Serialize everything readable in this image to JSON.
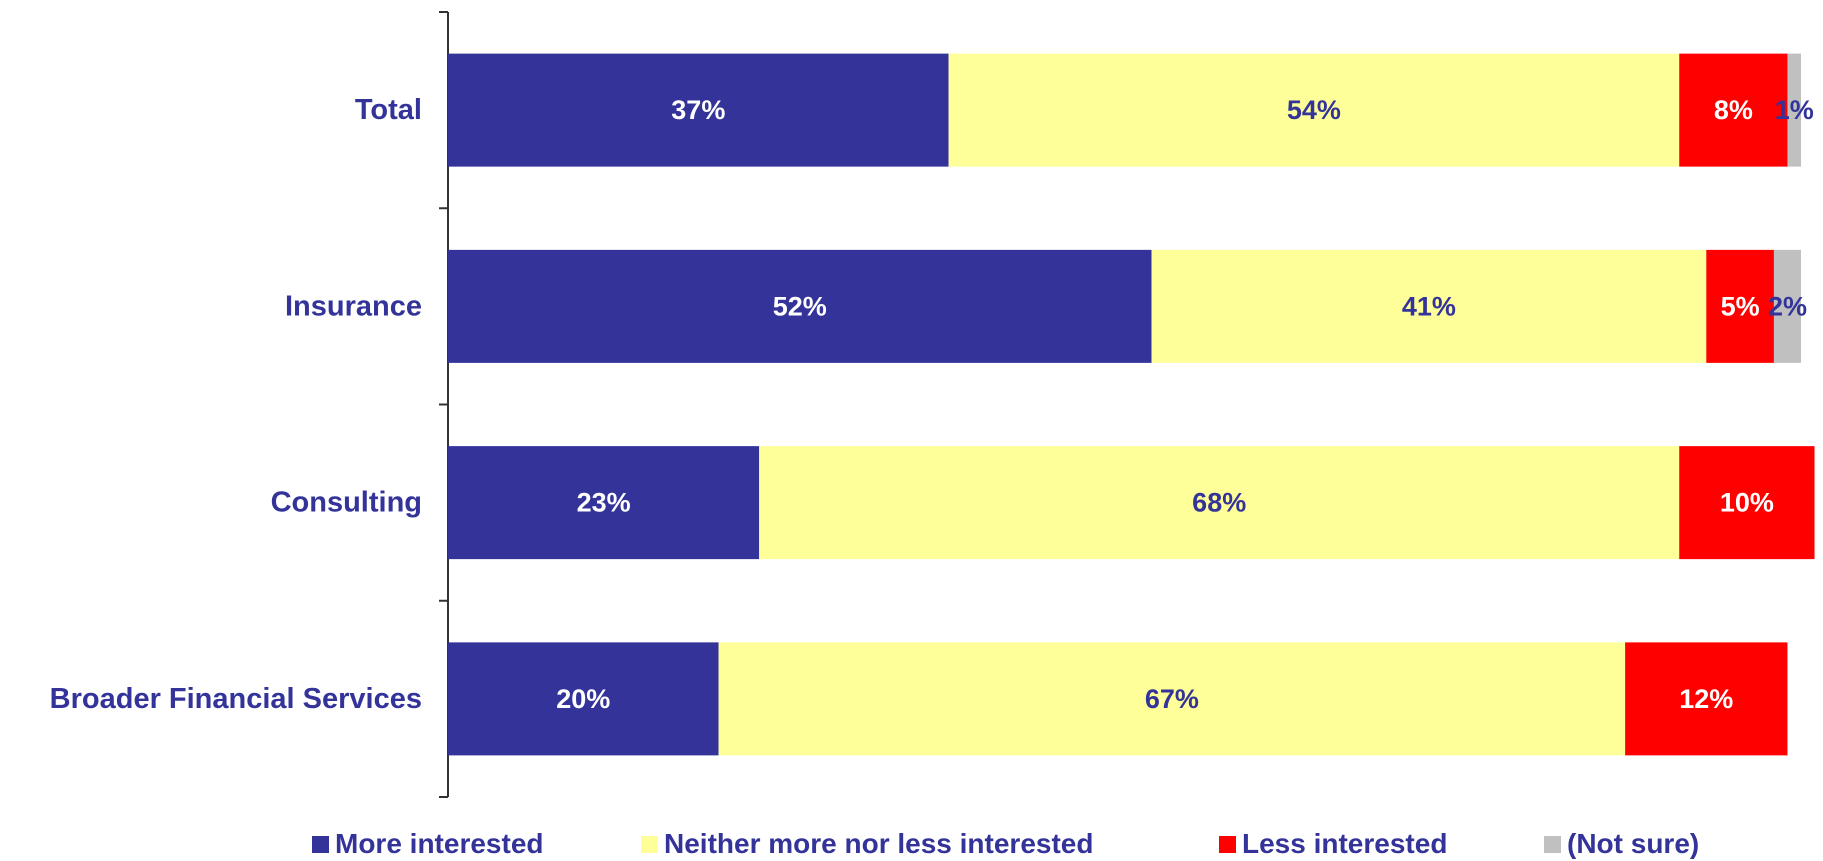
{
  "chart_data": {
    "type": "bar",
    "orientation": "horizontal",
    "stacked": true,
    "categories": [
      "Total",
      "Insurance",
      "Consulting",
      "Broader Financial Services"
    ],
    "series": [
      {
        "name": "More interested",
        "values": [
          37,
          52,
          23,
          20
        ],
        "labels": [
          "37%",
          "52%",
          "23%",
          "20%"
        ],
        "color": "#333399",
        "label_color": "#ffffff"
      },
      {
        "name": "Neither more nor less interested",
        "values": [
          54,
          41,
          68,
          67
        ],
        "labels": [
          "54%",
          "41%",
          "68%",
          "67%"
        ],
        "color": "#ffff99",
        "label_color": "#333399"
      },
      {
        "name": "Less interested",
        "values": [
          8,
          5,
          10,
          12
        ],
        "labels": [
          "8%",
          "5%",
          "10%",
          "12%"
        ],
        "color": "#ff0000",
        "label_color": "#ffffff"
      },
      {
        "name": "(Not sure)",
        "values": [
          1,
          2,
          0,
          0
        ],
        "labels": [
          "1%",
          "2%",
          "",
          ""
        ],
        "color": "#c0c0c0",
        "label_color": "#333399"
      }
    ],
    "xlim": [
      0,
      100
    ],
    "grid": false,
    "legend_position": "bottom",
    "title": "",
    "xlabel": "",
    "ylabel": ""
  }
}
